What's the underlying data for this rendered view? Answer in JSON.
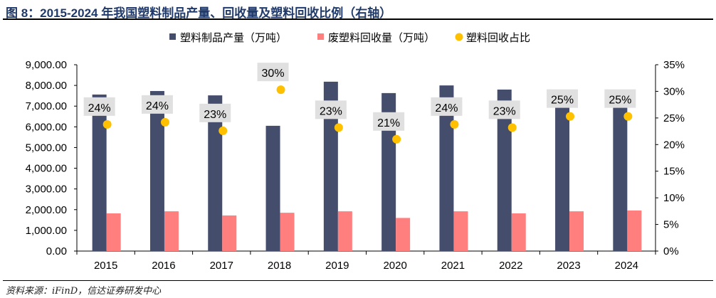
{
  "title": "图 8：2015-2024 年我国塑料制品产量、回收量及塑料回收比例（右轴）",
  "source": "资料来源：iFinD，信达证券研发中心",
  "chart_data": {
    "type": "bar+scatter",
    "categories": [
      "2015",
      "2016",
      "2017",
      "2018",
      "2019",
      "2020",
      "2021",
      "2022",
      "2023",
      "2024"
    ],
    "series": [
      {
        "name": "塑料制品产量（万吨）",
        "type": "bar",
        "axis": "left",
        "color": "#454d6d",
        "values": [
          7560,
          7730,
          7520,
          6050,
          8180,
          7630,
          8000,
          7800,
          6950,
          7000
        ]
      },
      {
        "name": "废塑料回收量（万吨）",
        "type": "bar",
        "axis": "left",
        "color": "#ff7f7f",
        "values": [
          1820,
          1920,
          1720,
          1850,
          1920,
          1600,
          1920,
          1820,
          1920,
          1960
        ]
      },
      {
        "name": "塑料回收占比",
        "type": "scatter",
        "axis": "right",
        "color": "#ffc000",
        "values": [
          23.8,
          24.2,
          22.6,
          30.3,
          23.2,
          21.0,
          23.8,
          23.2,
          25.3,
          25.3
        ],
        "labels": [
          "24%",
          "24%",
          "23%",
          "30%",
          "23%",
          "21%",
          "24%",
          "23%",
          "25%",
          "25%"
        ]
      }
    ],
    "ylim_left": [
      0,
      9000
    ],
    "yticks_left": [
      "0.00",
      "1,000.00",
      "2,000.00",
      "3,000.00",
      "4,000.00",
      "5,000.00",
      "6,000.00",
      "7,000.00",
      "8,000.00",
      "9,000.00"
    ],
    "ylim_right": [
      0,
      35
    ],
    "yticks_right": [
      "0%",
      "5%",
      "10%",
      "15%",
      "20%",
      "25%",
      "30%",
      "35%"
    ],
    "legend": "top",
    "grid": false
  }
}
